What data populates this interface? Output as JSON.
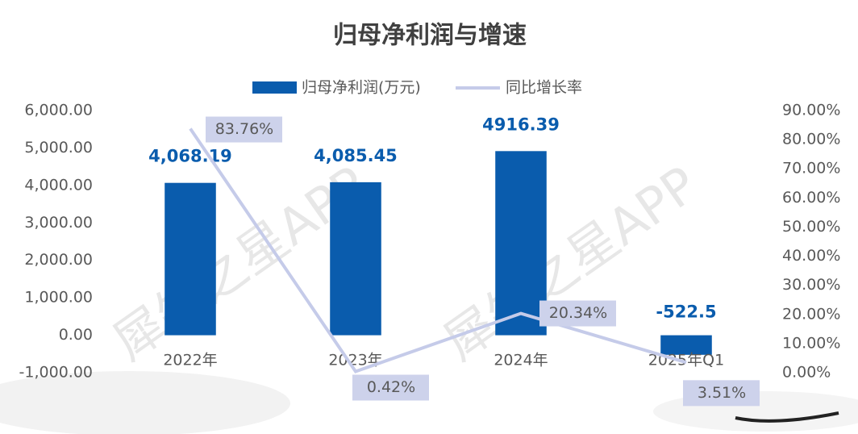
{
  "chart_data": {
    "type": "bar-line",
    "title": "归母净利润与增速",
    "watermarks": [
      "犀牛之星APP",
      "犀牛之星APP"
    ],
    "categories": [
      "2022年",
      "2023年",
      "2024年",
      "2025年Q1"
    ],
    "series": [
      {
        "name": "归母净利润(万元)",
        "type": "bar",
        "color": "#0a5cad",
        "axis": "y",
        "values": [
          4068.19,
          4085.45,
          4916.39,
          -522.5
        ],
        "value_labels": [
          "4,068.19",
          "4,085.45",
          "4916.39",
          "-522.5"
        ]
      },
      {
        "name": "同比增长率",
        "type": "line",
        "color": "#c5cbe9",
        "axis": "y2",
        "values": [
          83.76,
          0.42,
          20.34,
          3.51
        ],
        "value_labels": [
          "83.76%",
          "0.42%",
          "20.34%",
          "3.51%"
        ]
      }
    ],
    "ylim": [
      -1000,
      6000
    ],
    "yticks": [
      {
        "value": -1000,
        "label": "-1,000.00"
      },
      {
        "value": 0,
        "label": "0.00"
      },
      {
        "value": 1000,
        "label": "1,000.00"
      },
      {
        "value": 2000,
        "label": "2,000.00"
      },
      {
        "value": 3000,
        "label": "3,000.00"
      },
      {
        "value": 4000,
        "label": "4,000.00"
      },
      {
        "value": 5000,
        "label": "5,000.00"
      },
      {
        "value": 6000,
        "label": "6,000.00"
      }
    ],
    "y2lim": [
      0,
      90
    ],
    "y2ticks": [
      {
        "value": 0,
        "label": "0.00%"
      },
      {
        "value": 10,
        "label": "10.00%"
      },
      {
        "value": 20,
        "label": "20.00%"
      },
      {
        "value": 30,
        "label": "30.00%"
      },
      {
        "value": 40,
        "label": "40.00%"
      },
      {
        "value": 50,
        "label": "50.00%"
      },
      {
        "value": 60,
        "label": "60.00%"
      },
      {
        "value": 70,
        "label": "70.00%"
      },
      {
        "value": 80,
        "label": "80.00%"
      },
      {
        "value": 90,
        "label": "90.00%"
      }
    ],
    "grid": false,
    "legend": "top"
  }
}
